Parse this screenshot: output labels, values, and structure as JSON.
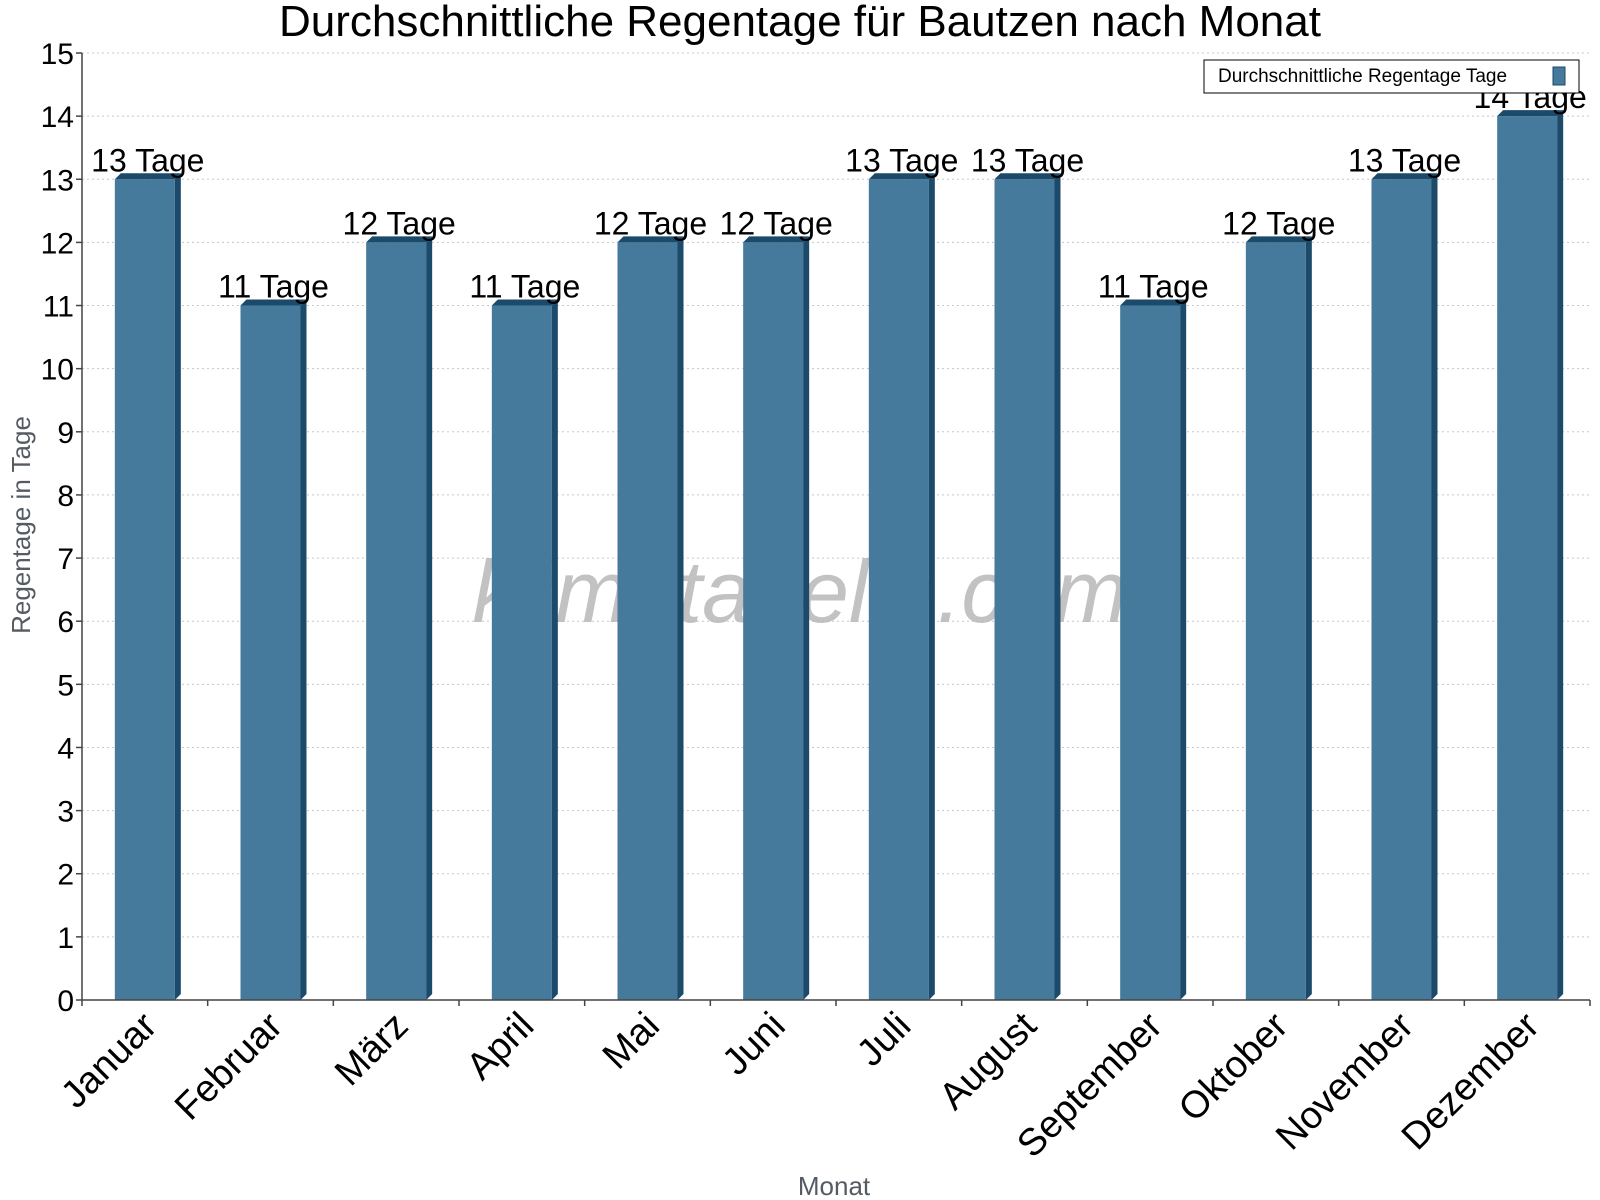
{
  "chart_data": {
    "type": "bar",
    "title": "Durchschnittliche Regentage für Bautzen nach Monat",
    "xlabel": "Monat",
    "ylabel": "Regentage in Tage",
    "categories": [
      "Januar",
      "Februar",
      "März",
      "April",
      "Mai",
      "Juni",
      "Juli",
      "August",
      "September",
      "Oktober",
      "November",
      "Dezember"
    ],
    "series": [
      {
        "name": "Durchschnittliche Regentage Tage",
        "values": [
          13,
          11,
          12,
          11,
          12,
          12,
          13,
          13,
          11,
          12,
          13,
          14
        ],
        "data_labels": [
          "13 Tage",
          "11 Tage",
          "12 Tage",
          "11 Tage",
          "12 Tage",
          "12 Tage",
          "13 Tage",
          "13 Tage",
          "11 Tage",
          "12 Tage",
          "13 Tage",
          "14 Tage"
        ]
      }
    ],
    "ylim": [
      0,
      15
    ],
    "yticks": [
      0,
      1,
      2,
      3,
      4,
      5,
      6,
      7,
      8,
      9,
      10,
      11,
      12,
      13,
      14,
      15
    ],
    "grid": true,
    "legend_position": "top-right",
    "colors": {
      "bar_face": "#467a9c",
      "bar_side": "#1c4a6b",
      "bar_top": "#1c4a6b"
    }
  },
  "watermark": "klimatabelle.com"
}
